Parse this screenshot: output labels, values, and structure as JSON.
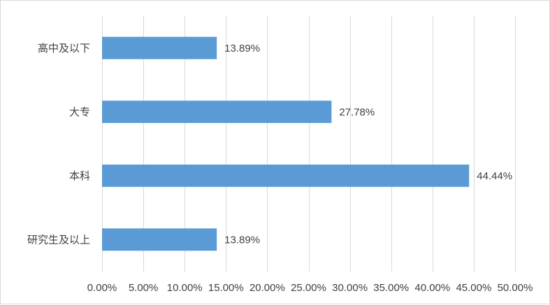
{
  "chart_data": {
    "type": "bar",
    "orientation": "horizontal",
    "title": "",
    "xlabel": "",
    "ylabel": "",
    "categories": [
      "高中及以下",
      "大专",
      "本科",
      "研究生及以上"
    ],
    "values": [
      13.89,
      27.78,
      44.44,
      13.89
    ],
    "value_labels": [
      "13.89%",
      "27.78%",
      "44.44%",
      "13.89%"
    ],
    "xlim": [
      0,
      50
    ],
    "xticks": [
      0,
      5,
      10,
      15,
      20,
      25,
      30,
      35,
      40,
      45,
      50
    ],
    "xtick_labels": [
      "0.00%",
      "5.00%",
      "10.00%",
      "15.00%",
      "20.00%",
      "25.00%",
      "30.00%",
      "35.00%",
      "40.00%",
      "45.00%",
      "50.00%"
    ],
    "grid": "vertical",
    "legend": "none",
    "bar_color": "#5b9bd5",
    "grid_color": "#d9d9d9"
  }
}
